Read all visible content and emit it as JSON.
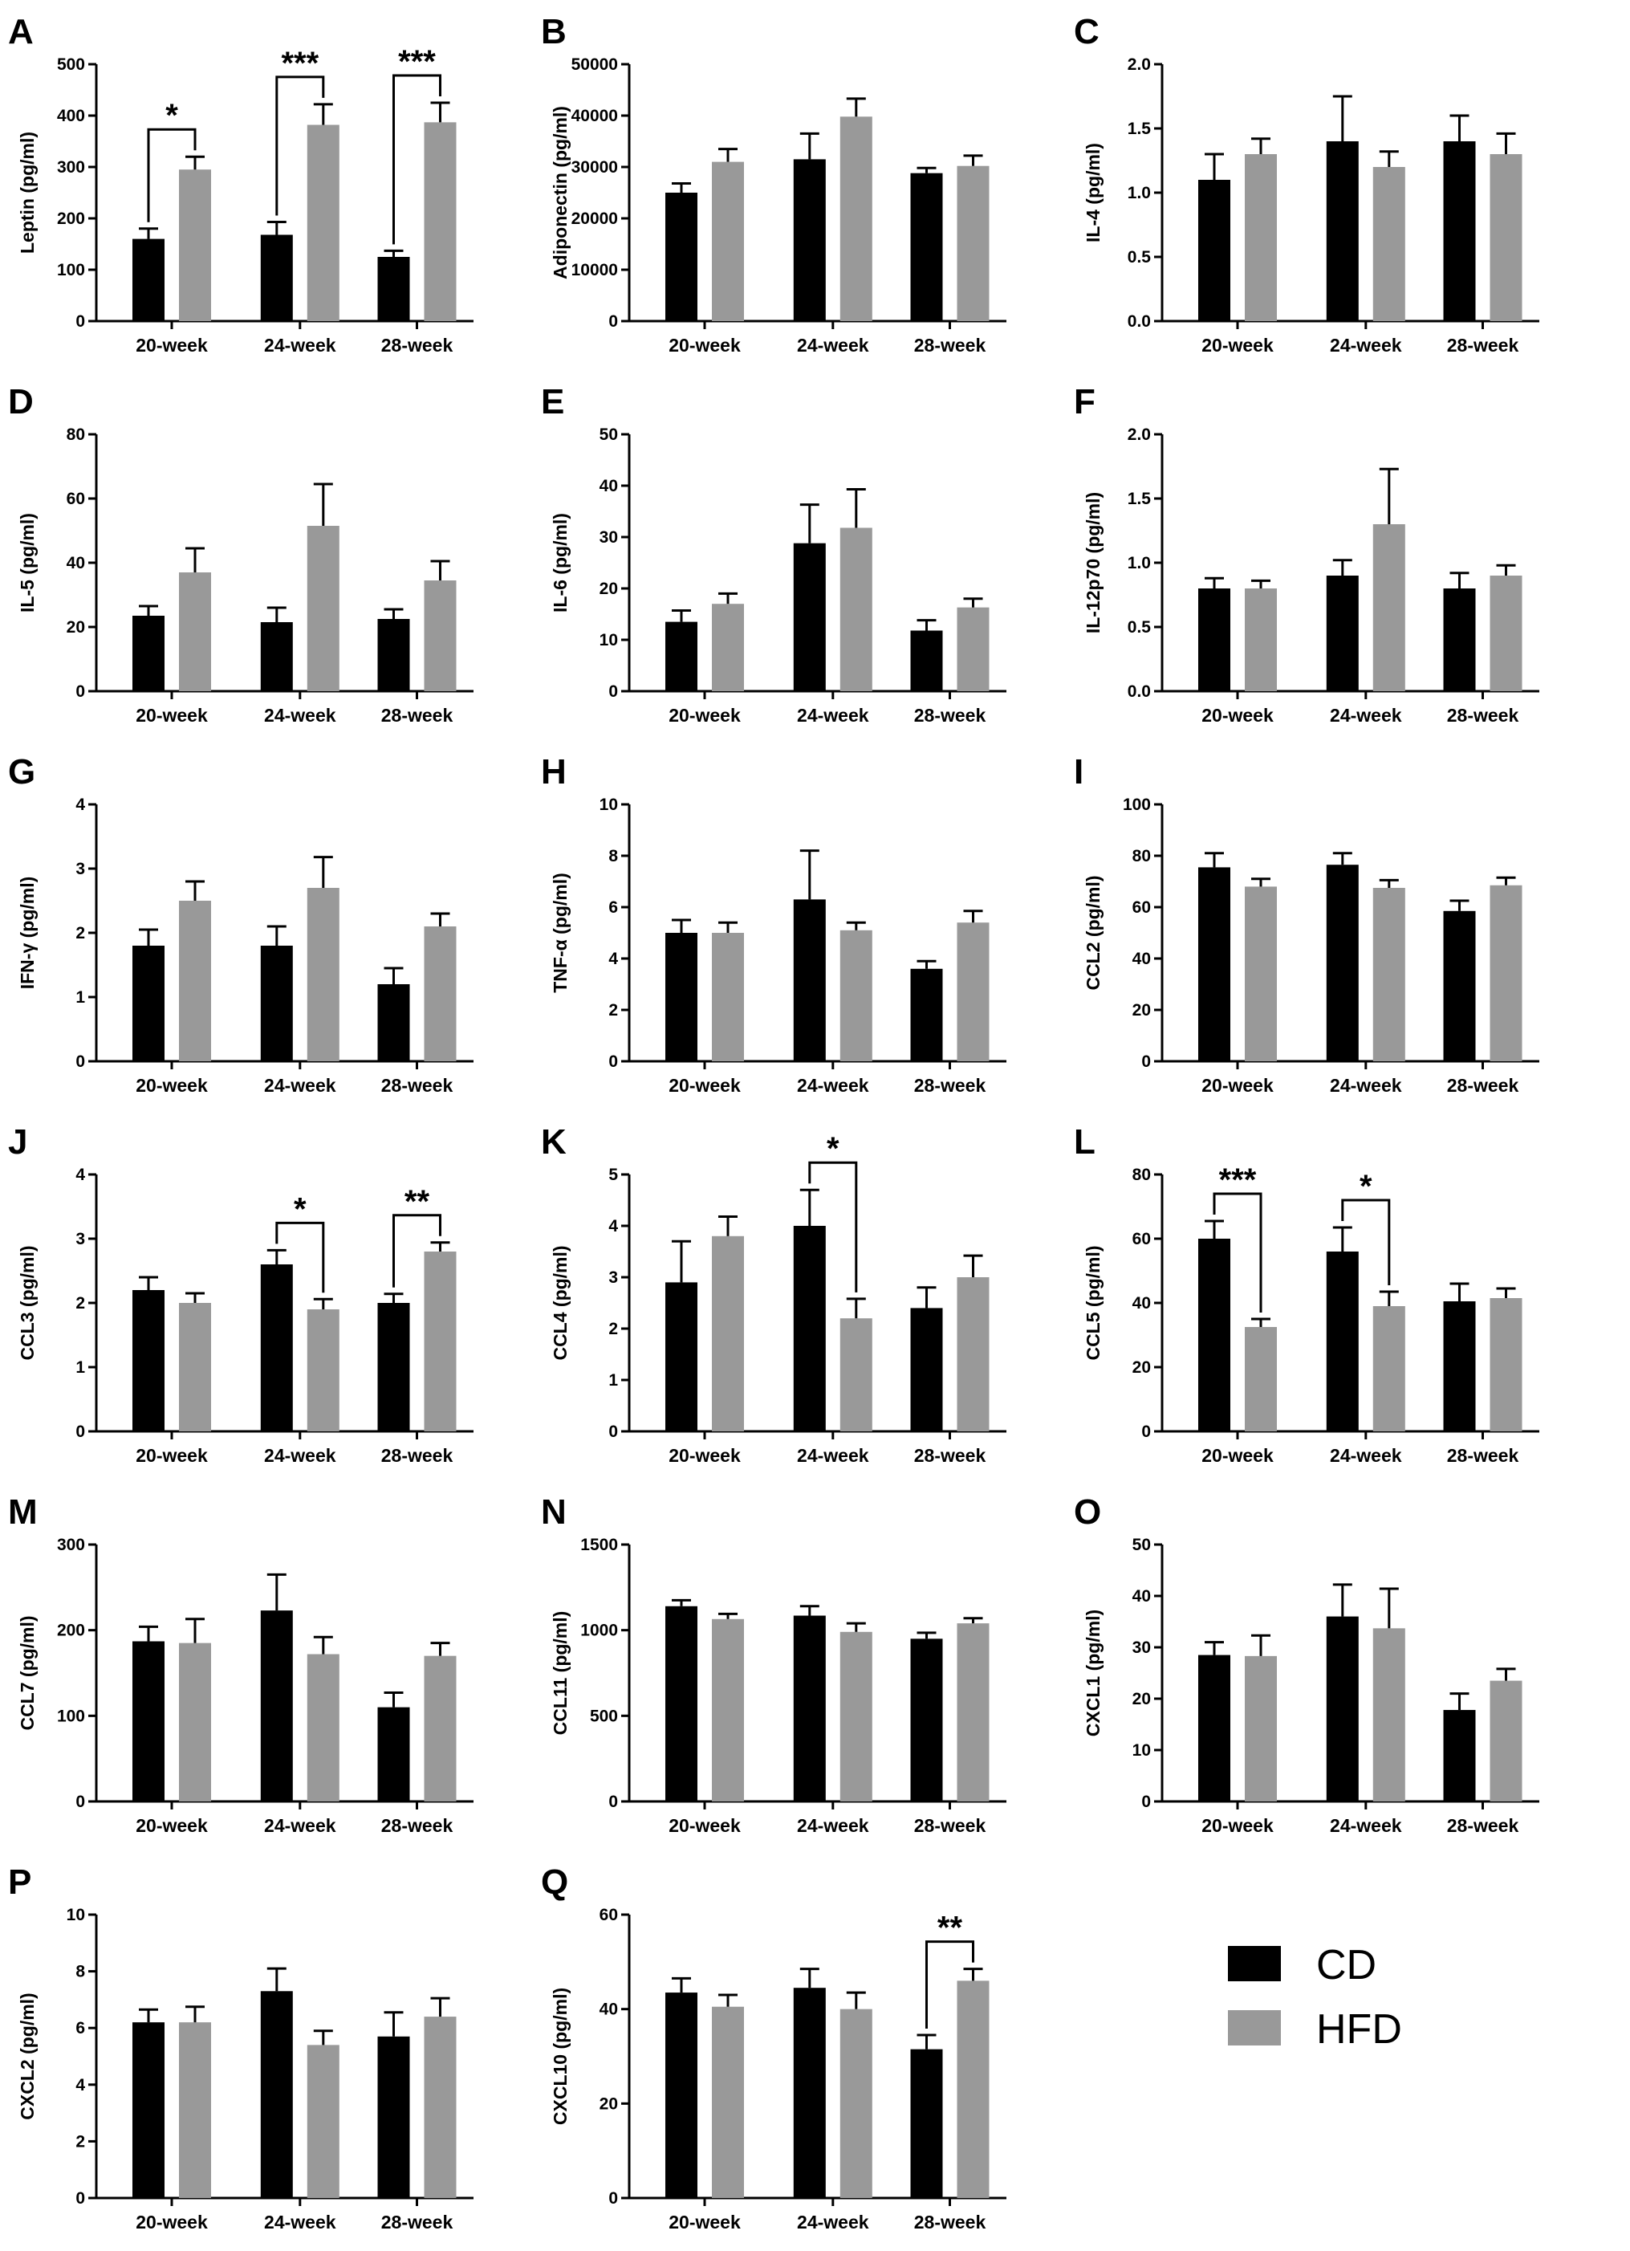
{
  "legend": {
    "items": [
      {
        "label": "CD",
        "color": "#000000"
      },
      {
        "label": "HFD",
        "color": "#999999"
      }
    ]
  },
  "colors": {
    "CD": "#000000",
    "HFD": "#999999"
  },
  "chart_data": [
    {
      "type": "bar",
      "panel": "A",
      "ylabel": "Leptin (pg/ml)",
      "categories": [
        "20-week",
        "24-week",
        "28-week"
      ],
      "ylim": [
        0,
        500
      ],
      "yticks": [
        0,
        100,
        200,
        300,
        400,
        500
      ],
      "series": [
        {
          "name": "CD",
          "values": [
            160,
            168,
            125
          ],
          "errors": [
            20,
            25,
            12
          ]
        },
        {
          "name": "HFD",
          "values": [
            295,
            382,
            387
          ],
          "errors": [
            25,
            40,
            38
          ]
        }
      ],
      "significance": [
        {
          "category": "20-week",
          "label": "*"
        },
        {
          "category": "24-week",
          "label": "***"
        },
        {
          "category": "28-week",
          "label": "***"
        }
      ]
    },
    {
      "type": "bar",
      "panel": "B",
      "ylabel": "Adiponectin (pg/ml)",
      "categories": [
        "20-week",
        "24-week",
        "28-week"
      ],
      "ylim": [
        0,
        50000
      ],
      "yticks": [
        0,
        10000,
        20000,
        30000,
        40000,
        50000
      ],
      "series": [
        {
          "name": "CD",
          "values": [
            25000,
            31500,
            28800
          ],
          "errors": [
            1800,
            5000,
            1000
          ]
        },
        {
          "name": "HFD",
          "values": [
            31000,
            39800,
            30200
          ],
          "errors": [
            2500,
            3500,
            2000
          ]
        }
      ],
      "significance": []
    },
    {
      "type": "bar",
      "panel": "C",
      "ylabel": "IL-4 (pg/ml)",
      "categories": [
        "20-week",
        "24-week",
        "28-week"
      ],
      "ylim": [
        0,
        2.0
      ],
      "yticks": [
        "0.0",
        "0.5",
        "1.0",
        "1.5",
        "2.0"
      ],
      "series": [
        {
          "name": "CD",
          "values": [
            1.1,
            1.4,
            1.4
          ],
          "errors": [
            0.2,
            0.35,
            0.2
          ]
        },
        {
          "name": "HFD",
          "values": [
            1.3,
            1.2,
            1.3
          ],
          "errors": [
            0.12,
            0.12,
            0.16
          ]
        }
      ],
      "significance": []
    },
    {
      "type": "bar",
      "panel": "D",
      "ylabel": "IL-5 (pg/ml)",
      "categories": [
        "20-week",
        "24-week",
        "28-week"
      ],
      "ylim": [
        0,
        80
      ],
      "yticks": [
        0,
        20,
        40,
        60,
        80
      ],
      "series": [
        {
          "name": "CD",
          "values": [
            23.5,
            21.5,
            22.5
          ],
          "errors": [
            3,
            4.5,
            3
          ]
        },
        {
          "name": "HFD",
          "values": [
            37,
            51.5,
            34.5
          ],
          "errors": [
            7.5,
            13,
            6
          ]
        }
      ],
      "significance": []
    },
    {
      "type": "bar",
      "panel": "E",
      "ylabel": "IL-6 (pg/ml)",
      "categories": [
        "20-week",
        "24-week",
        "28-week"
      ],
      "ylim": [
        0,
        50
      ],
      "yticks": [
        0,
        10,
        20,
        30,
        40,
        50
      ],
      "series": [
        {
          "name": "CD",
          "values": [
            13.5,
            28.8,
            11.8
          ],
          "errors": [
            2.2,
            7.5,
            2
          ]
        },
        {
          "name": "HFD",
          "values": [
            17,
            31.8,
            16.3
          ],
          "errors": [
            2,
            7.5,
            1.7
          ]
        }
      ],
      "significance": []
    },
    {
      "type": "bar",
      "panel": "F",
      "ylabel": "IL-12p70 (pg/ml)",
      "categories": [
        "20-week",
        "24-week",
        "28-week"
      ],
      "ylim": [
        0,
        2.0
      ],
      "yticks": [
        "0.0",
        "0.5",
        "1.0",
        "1.5",
        "2.0"
      ],
      "series": [
        {
          "name": "CD",
          "values": [
            0.8,
            0.9,
            0.8
          ],
          "errors": [
            0.08,
            0.12,
            0.12
          ]
        },
        {
          "name": "HFD",
          "values": [
            0.8,
            1.3,
            0.9
          ],
          "errors": [
            0.06,
            0.43,
            0.08
          ]
        }
      ],
      "significance": []
    },
    {
      "type": "bar",
      "panel": "G",
      "ylabel": "IFN-γ (pg/ml)",
      "categories": [
        "20-week",
        "24-week",
        "28-week"
      ],
      "ylim": [
        0,
        4
      ],
      "yticks": [
        0,
        1,
        2,
        3,
        4
      ],
      "series": [
        {
          "name": "CD",
          "values": [
            1.8,
            1.8,
            1.2
          ],
          "errors": [
            0.25,
            0.3,
            0.25
          ]
        },
        {
          "name": "HFD",
          "values": [
            2.5,
            2.7,
            2.1
          ],
          "errors": [
            0.3,
            0.48,
            0.2
          ]
        }
      ],
      "significance": []
    },
    {
      "type": "bar",
      "panel": "H",
      "ylabel": "TNF-α (pg/ml)",
      "categories": [
        "20-week",
        "24-week",
        "28-week"
      ],
      "ylim": [
        0,
        10
      ],
      "yticks": [
        0,
        2,
        4,
        6,
        8,
        10
      ],
      "series": [
        {
          "name": "CD",
          "values": [
            5,
            6.3,
            3.6
          ],
          "errors": [
            0.5,
            1.9,
            0.3
          ]
        },
        {
          "name": "HFD",
          "values": [
            5,
            5.1,
            5.4
          ],
          "errors": [
            0.4,
            0.3,
            0.45
          ]
        }
      ],
      "significance": []
    },
    {
      "type": "bar",
      "panel": "I",
      "ylabel": "CCL2 (pg/ml)",
      "categories": [
        "20-week",
        "24-week",
        "28-week"
      ],
      "ylim": [
        0,
        100
      ],
      "yticks": [
        0,
        20,
        40,
        60,
        80,
        100
      ],
      "series": [
        {
          "name": "CD",
          "values": [
            75.5,
            76.5,
            58.5
          ],
          "errors": [
            5.5,
            4.5,
            4
          ]
        },
        {
          "name": "HFD",
          "values": [
            68,
            67.5,
            68.5
          ],
          "errors": [
            3,
            3,
            3
          ]
        }
      ],
      "significance": []
    },
    {
      "type": "bar",
      "panel": "J",
      "ylabel": "CCL3 (pg/ml)",
      "categories": [
        "20-week",
        "24-week",
        "28-week"
      ],
      "ylim": [
        0,
        4
      ],
      "yticks": [
        0,
        1,
        2,
        3,
        4
      ],
      "series": [
        {
          "name": "CD",
          "values": [
            2.2,
            2.6,
            2.0
          ],
          "errors": [
            0.2,
            0.22,
            0.14
          ]
        },
        {
          "name": "HFD",
          "values": [
            2.0,
            1.9,
            2.8
          ],
          "errors": [
            0.15,
            0.16,
            0.14
          ]
        }
      ],
      "significance": [
        {
          "category": "24-week",
          "label": "*"
        },
        {
          "category": "28-week",
          "label": "**"
        }
      ]
    },
    {
      "type": "bar",
      "panel": "K",
      "ylabel": "CCL4 (pg/ml)",
      "categories": [
        "20-week",
        "24-week",
        "28-week"
      ],
      "ylim": [
        0,
        5
      ],
      "yticks": [
        0,
        1,
        2,
        3,
        4,
        5
      ],
      "series": [
        {
          "name": "CD",
          "values": [
            2.9,
            4.0,
            2.4
          ],
          "errors": [
            0.8,
            0.7,
            0.4
          ]
        },
        {
          "name": "HFD",
          "values": [
            3.8,
            2.2,
            3.0
          ],
          "errors": [
            0.38,
            0.38,
            0.42
          ]
        }
      ],
      "significance": [
        {
          "category": "24-week",
          "label": "*"
        }
      ]
    },
    {
      "type": "bar",
      "panel": "L",
      "ylabel": "CCL5 (pg/ml)",
      "categories": [
        "20-week",
        "24-week",
        "28-week"
      ],
      "ylim": [
        0,
        80
      ],
      "yticks": [
        0,
        20,
        40,
        60,
        80
      ],
      "series": [
        {
          "name": "CD",
          "values": [
            60,
            56,
            40.5
          ],
          "errors": [
            5.5,
            7.5,
            5.5
          ]
        },
        {
          "name": "HFD",
          "values": [
            32.5,
            39,
            41.5
          ],
          "errors": [
            2.5,
            4.5,
            3
          ]
        }
      ],
      "significance": [
        {
          "category": "20-week",
          "label": "***"
        },
        {
          "category": "24-week",
          "label": "*"
        }
      ]
    },
    {
      "type": "bar",
      "panel": "M",
      "ylabel": "CCL7 (pg/ml)",
      "categories": [
        "20-week",
        "24-week",
        "28-week"
      ],
      "ylim": [
        0,
        300
      ],
      "yticks": [
        0,
        100,
        200,
        300
      ],
      "series": [
        {
          "name": "CD",
          "values": [
            187,
            223,
            110
          ],
          "errors": [
            17,
            42,
            17
          ]
        },
        {
          "name": "HFD",
          "values": [
            185,
            172,
            170
          ],
          "errors": [
            28,
            20,
            15
          ]
        }
      ],
      "significance": []
    },
    {
      "type": "bar",
      "panel": "N",
      "ylabel": "CCL11 (pg/ml)",
      "categories": [
        "20-week",
        "24-week",
        "28-week"
      ],
      "ylim": [
        0,
        1500
      ],
      "yticks": [
        0,
        500,
        1000,
        1500
      ],
      "series": [
        {
          "name": "CD",
          "values": [
            1140,
            1085,
            950
          ],
          "errors": [
            35,
            55,
            35
          ]
        },
        {
          "name": "HFD",
          "values": [
            1065,
            990,
            1040
          ],
          "errors": [
            30,
            50,
            30
          ]
        }
      ],
      "significance": []
    },
    {
      "type": "bar",
      "panel": "O",
      "ylabel": "CXCL1 (pg/ml)",
      "categories": [
        "20-week",
        "24-week",
        "28-week"
      ],
      "ylim": [
        0,
        50
      ],
      "yticks": [
        0,
        10,
        20,
        30,
        40,
        50
      ],
      "series": [
        {
          "name": "CD",
          "values": [
            28.5,
            36,
            17.8
          ],
          "errors": [
            2.5,
            6.2,
            3.2
          ]
        },
        {
          "name": "HFD",
          "values": [
            28.3,
            33.7,
            23.5
          ],
          "errors": [
            4,
            7.7,
            2.3
          ]
        }
      ],
      "significance": []
    },
    {
      "type": "bar",
      "panel": "P",
      "ylabel": "CXCL2 (pg/ml)",
      "categories": [
        "20-week",
        "24-week",
        "28-week"
      ],
      "ylim": [
        0,
        10
      ],
      "yticks": [
        0,
        2,
        4,
        6,
        8,
        10
      ],
      "series": [
        {
          "name": "CD",
          "values": [
            6.2,
            7.3,
            5.7
          ],
          "errors": [
            0.45,
            0.8,
            0.85
          ]
        },
        {
          "name": "HFD",
          "values": [
            6.2,
            5.4,
            6.4
          ],
          "errors": [
            0.55,
            0.5,
            0.65
          ]
        }
      ],
      "significance": []
    },
    {
      "type": "bar",
      "panel": "Q",
      "ylabel": "CXCL10 (pg/ml)",
      "categories": [
        "20-week",
        "24-week",
        "28-week"
      ],
      "ylim": [
        0,
        60
      ],
      "yticks": [
        0,
        20,
        40,
        60
      ],
      "series": [
        {
          "name": "CD",
          "values": [
            43.5,
            44.5,
            31.5
          ],
          "errors": [
            3,
            4,
            3
          ]
        },
        {
          "name": "HFD",
          "values": [
            40.5,
            40,
            46
          ],
          "errors": [
            2.5,
            3.5,
            2.5
          ]
        }
      ],
      "significance": [
        {
          "category": "28-week",
          "label": "**"
        }
      ]
    }
  ]
}
